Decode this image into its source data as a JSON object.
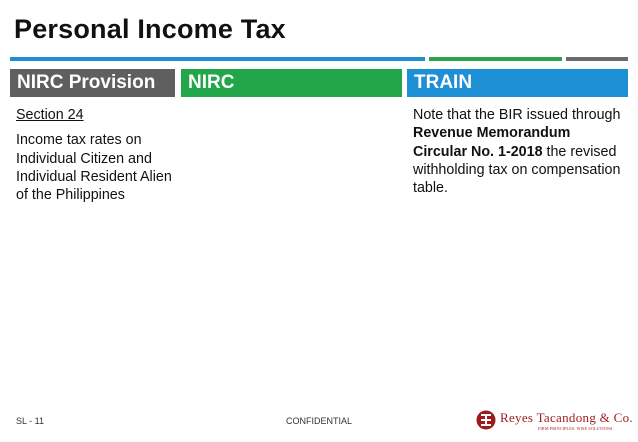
{
  "slide": {
    "title": "Personal Income Tax"
  },
  "colors": {
    "rule_blue": "#1f8fd2",
    "rule_green": "#2aa54a",
    "rule_gray": "#6a6a6a",
    "header_gray": "#5f5f5f",
    "header_green": "#22a64a",
    "header_blue": "#1d8fd4",
    "brand_red": "#9e1b1b"
  },
  "columns": {
    "provision": {
      "header": "NIRC Provision",
      "section": "Section 24",
      "description": "Income tax rates on Individual Citizen and Individual Resident Alien of the Philippines"
    },
    "nirc": {
      "header": "NIRC"
    },
    "train": {
      "header": "TRAIN",
      "note_part1": "Note that the BIR issued through ",
      "note_bold": "Revenue Memorandum Circular No. 1-2018",
      "note_part2": " the revised withholding tax on compensation table."
    }
  },
  "footer": {
    "slide_number": "SL - 11",
    "confidentiality": "CONFIDENTIAL",
    "logo_name": "Reyes Tacandong & Co.",
    "logo_tagline": "FIRM PRINCIPLES. WISE SOLUTIONS."
  }
}
